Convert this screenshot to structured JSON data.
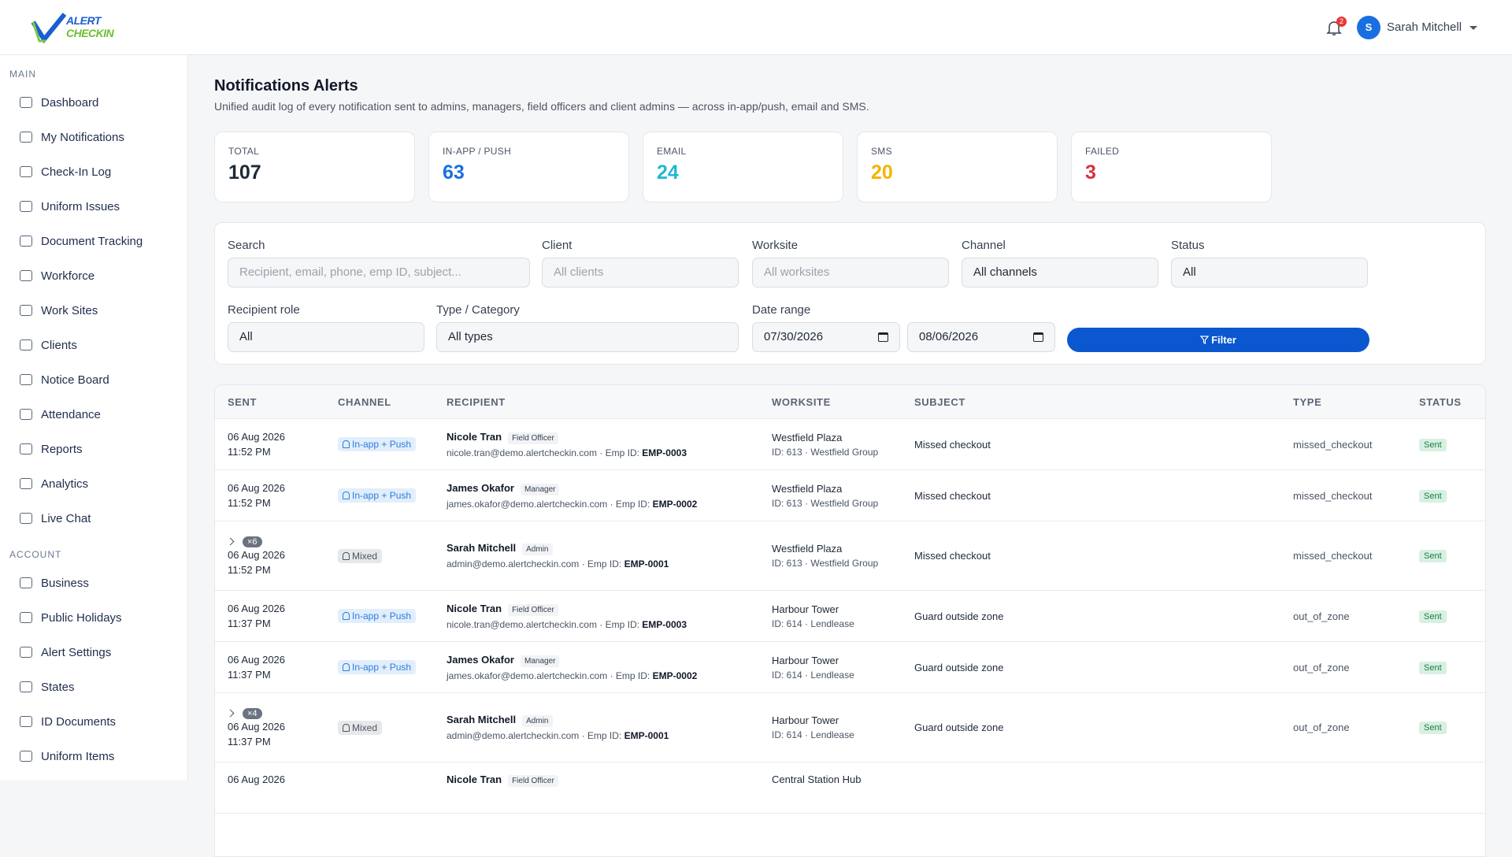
{
  "header": {
    "logo_top": "ALERT",
    "logo_bottom": "CHECKIN",
    "notification_count": "2",
    "avatar": "S",
    "user": "Sarah Mitchell"
  },
  "sidebar": {
    "sections": [
      {
        "title": "MAIN",
        "items": [
          "Dashboard",
          "My Notifications",
          "Check-In Log",
          "Uniform Issues",
          "Document Tracking",
          "Workforce",
          "Work Sites",
          "Clients",
          "Notice Board",
          "Attendance",
          "Reports",
          "Analytics",
          "Live Chat"
        ]
      },
      {
        "title": "ACCOUNT",
        "items": [
          "Business",
          "Public Holidays",
          "Alert Settings",
          "States",
          "ID Documents",
          "Uniform Items"
        ]
      }
    ]
  },
  "page": {
    "title": "Notifications Alerts",
    "subtitle": "Unified audit log of every notification sent to admins, managers, field officers and client admins — across in-app/push, email and SMS."
  },
  "stats": [
    {
      "label": "TOTAL",
      "value": "107",
      "color": "#1f2937"
    },
    {
      "label": "IN-APP / PUSH",
      "value": "63",
      "color": "#1a6fe0"
    },
    {
      "label": "EMAIL",
      "value": "24",
      "color": "#22b8d6"
    },
    {
      "label": "SMS",
      "value": "20",
      "color": "#f4b400"
    },
    {
      "label": "FAILED",
      "value": "3",
      "color": "#d93040"
    }
  ],
  "filters": {
    "search": {
      "label": "Search",
      "placeholder": "Recipient, email, phone, emp ID, subject..."
    },
    "client": {
      "label": "Client",
      "placeholder": "All clients"
    },
    "worksite": {
      "label": "Worksite",
      "placeholder": "All worksites"
    },
    "channel": {
      "label": "Channel",
      "value": "All channels"
    },
    "status": {
      "label": "Status",
      "value": "All"
    },
    "role": {
      "label": "Recipient role",
      "value": "All"
    },
    "type": {
      "label": "Type / Category",
      "value": "All types"
    },
    "date": {
      "label": "Date range",
      "from": "07/30/2026",
      "to": "08/06/2026"
    },
    "button": "Filter"
  },
  "table": {
    "columns": [
      "SENT",
      "CHANNEL",
      "RECIPIENT",
      "WORKSITE",
      "SUBJECT",
      "TYPE",
      "STATUS"
    ],
    "rows": [
      {
        "date": "06 Aug 2026",
        "time": "11:52 PM",
        "channel": "In-app + Push",
        "channel_color": "#2a7de1",
        "name": "Nicole Tran",
        "role": "Field Officer",
        "email": "nicole.tran@demo.alertcheckin.com · Emp ID:",
        "emp_id": "EMP-0003",
        "worksite": "Westfield Plaza",
        "worksite_sub": "ID: 613 · Westfield Group",
        "subject": "Missed checkout",
        "type": "missed_checkout",
        "status": "Sent"
      },
      {
        "date": "06 Aug 2026",
        "time": "11:52 PM",
        "channel": "In-app + Push",
        "channel_color": "#2a7de1",
        "name": "James Okafor",
        "role": "Manager",
        "email": "james.okafor@demo.alertcheckin.com · Emp ID:",
        "emp_id": "EMP-0002",
        "worksite": "Westfield Plaza",
        "worksite_sub": "ID: 613 · Westfield Group",
        "subject": "Missed checkout",
        "type": "missed_checkout",
        "status": "Sent"
      },
      {
        "group": "×6",
        "date": "06 Aug 2026",
        "time": "11:52 PM",
        "channel": "Mixed",
        "channel_color": "#4b5563",
        "name": "Sarah Mitchell",
        "role": "Admin",
        "email": "admin@demo.alertcheckin.com · Emp ID:",
        "emp_id": "EMP-0001",
        "worksite": "Westfield Plaza",
        "worksite_sub": "ID: 613 · Westfield Group",
        "subject": "Missed checkout",
        "type": "missed_checkout",
        "status": "Sent"
      },
      {
        "date": "06 Aug 2026",
        "time": "11:37 PM",
        "channel": "In-app + Push",
        "channel_color": "#2a7de1",
        "name": "Nicole Tran",
        "role": "Field Officer",
        "email": "nicole.tran@demo.alertcheckin.com · Emp ID:",
        "emp_id": "EMP-0003",
        "worksite": "Harbour Tower",
        "worksite_sub": "ID: 614 · Lendlease",
        "subject": "Guard outside zone",
        "type": "out_of_zone",
        "status": "Sent"
      },
      {
        "date": "06 Aug 2026",
        "time": "11:37 PM",
        "channel": "In-app + Push",
        "channel_color": "#2a7de1",
        "name": "James Okafor",
        "role": "Manager",
        "email": "james.okafor@demo.alertcheckin.com · Emp ID:",
        "emp_id": "EMP-0002",
        "worksite": "Harbour Tower",
        "worksite_sub": "ID: 614 · Lendlease",
        "subject": "Guard outside zone",
        "type": "out_of_zone",
        "status": "Sent"
      },
      {
        "group": "×4",
        "date": "06 Aug 2026",
        "time": "11:37 PM",
        "channel": "Mixed",
        "channel_color": "#4b5563",
        "name": "Sarah Mitchell",
        "role": "Admin",
        "email": "admin@demo.alertcheckin.com · Emp ID:",
        "emp_id": "EMP-0001",
        "worksite": "Harbour Tower",
        "worksite_sub": "ID: 614 · Lendlease",
        "subject": "Guard outside zone",
        "type": "out_of_zone",
        "status": "Sent"
      },
      {
        "date": "06 Aug 2026",
        "name": "Nicole Tran",
        "role": "Field Officer",
        "worksite": "Central Station Hub"
      }
    ]
  }
}
